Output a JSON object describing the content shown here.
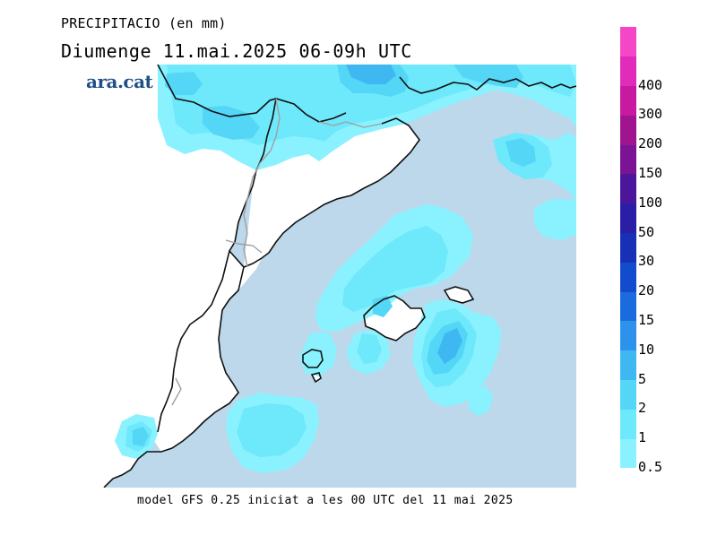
{
  "header": {
    "title": "PRECIPITACIO (en mm)",
    "subtitle": "Diumenge  11.mai.2025 06-09h UTC"
  },
  "logo": {
    "text": "ara.cat"
  },
  "footer": {
    "text": "model GFS 0.25 iniciat a les 00 UTC del 11 mai 2025"
  },
  "legend": {
    "steps": [
      {
        "label": "0.5",
        "color": "#8af2ff"
      },
      {
        "label": "1",
        "color": "#6ee8fb"
      },
      {
        "label": "2",
        "color": "#54d6f6"
      },
      {
        "label": "5",
        "color": "#3fb8f2"
      },
      {
        "label": "10",
        "color": "#2c92ec"
      },
      {
        "label": "15",
        "color": "#1a6cde"
      },
      {
        "label": "20",
        "color": "#134bcf"
      },
      {
        "label": "30",
        "color": "#1730b5"
      },
      {
        "label": "50",
        "color": "#2a1ea6"
      },
      {
        "label": "100",
        "color": "#4c169c"
      },
      {
        "label": "150",
        "color": "#7a1494"
      },
      {
        "label": "200",
        "color": "#a11490"
      },
      {
        "label": "300",
        "color": "#c81aa0"
      },
      {
        "label": "400",
        "color": "#e02cb8"
      },
      {
        "label": "",
        "color": "#f446c6"
      }
    ]
  },
  "colors": {
    "sea": "#bcd8ea",
    "land": "#ffffff",
    "coast": "#111111",
    "border": "#a0a0a0"
  }
}
